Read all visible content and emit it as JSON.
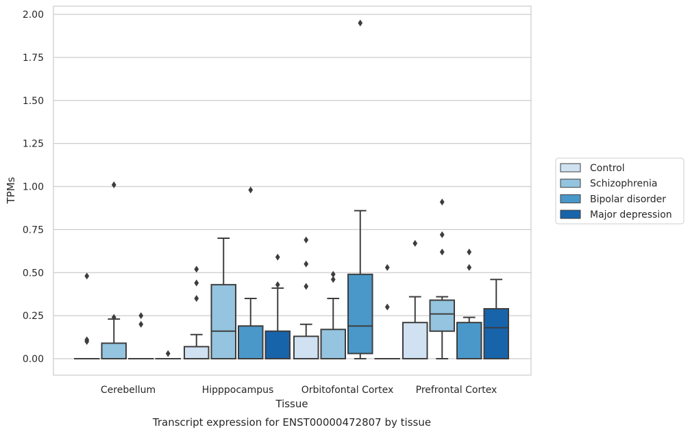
{
  "chart_data": {
    "type": "boxplot",
    "caption": "Transcript expression for ENST00000472807 by tissue",
    "xlabel": "Tissue",
    "ylabel": "TPMs",
    "ylim": [
      -0.1,
      2.05
    ],
    "yticks": [
      0.0,
      0.25,
      0.5,
      0.75,
      1.0,
      1.25,
      1.5,
      1.75,
      2.0
    ],
    "ytick_labels": [
      "0.00",
      "0.25",
      "0.50",
      "0.75",
      "1.00",
      "1.25",
      "1.50",
      "1.75",
      "2.00"
    ],
    "grid": "horizontal",
    "legend_position": "right",
    "categories": [
      "Cerebellum",
      "Hipppocampus",
      "Orbitofontal Cortex",
      "Prefrontal Cortex"
    ],
    "series": [
      {
        "name": "Control",
        "color": "#d0e1f2",
        "boxes": [
          {
            "q1": 0.0,
            "median": 0.0,
            "q3": 0.0,
            "whisker_low": 0.0,
            "whisker_high": 0.0,
            "outliers": [
              0.48,
              0.11,
              0.1
            ]
          },
          {
            "q1": 0.0,
            "median": 0.0,
            "q3": 0.07,
            "whisker_low": 0.0,
            "whisker_high": 0.14,
            "outliers": [
              0.52,
              0.44,
              0.35
            ]
          },
          {
            "q1": 0.0,
            "median": 0.0,
            "q3": 0.13,
            "whisker_low": 0.0,
            "whisker_high": 0.2,
            "outliers": [
              0.69,
              0.55,
              0.42
            ]
          },
          {
            "q1": 0.0,
            "median": 0.0,
            "q3": 0.21,
            "whisker_low": 0.0,
            "whisker_high": 0.36,
            "outliers": [
              0.67
            ]
          }
        ]
      },
      {
        "name": "Schizophrenia",
        "color": "#94c4df",
        "boxes": [
          {
            "q1": 0.0,
            "median": 0.0,
            "q3": 0.09,
            "whisker_low": 0.0,
            "whisker_high": 0.23,
            "outliers": [
              1.01,
              0.24
            ]
          },
          {
            "q1": 0.0,
            "median": 0.16,
            "q3": 0.43,
            "whisker_low": 0.0,
            "whisker_high": 0.7,
            "outliers": []
          },
          {
            "q1": 0.0,
            "median": 0.0,
            "q3": 0.17,
            "whisker_low": 0.0,
            "whisker_high": 0.35,
            "outliers": [
              0.49,
              0.46
            ]
          },
          {
            "q1": 0.16,
            "median": 0.26,
            "q3": 0.34,
            "whisker_low": 0.0,
            "whisker_high": 0.36,
            "outliers": [
              0.91,
              0.72,
              0.62
            ]
          }
        ]
      },
      {
        "name": "Bipolar disorder",
        "color": "#4a98c9",
        "boxes": [
          {
            "q1": 0.0,
            "median": 0.0,
            "q3": 0.0,
            "whisker_low": 0.0,
            "whisker_high": 0.0,
            "outliers": [
              0.25,
              0.2
            ]
          },
          {
            "q1": 0.0,
            "median": 0.0,
            "q3": 0.19,
            "whisker_low": 0.0,
            "whisker_high": 0.35,
            "outliers": [
              0.98
            ]
          },
          {
            "q1": 0.03,
            "median": 0.19,
            "q3": 0.49,
            "whisker_low": 0.0,
            "whisker_high": 0.86,
            "outliers": [
              1.95
            ]
          },
          {
            "q1": 0.0,
            "median": 0.0,
            "q3": 0.21,
            "whisker_low": 0.0,
            "whisker_high": 0.24,
            "outliers": [
              0.62,
              0.53
            ]
          }
        ]
      },
      {
        "name": "Major depression",
        "color": "#1764ab",
        "boxes": [
          {
            "q1": 0.0,
            "median": 0.0,
            "q3": 0.0,
            "whisker_low": 0.0,
            "whisker_high": 0.0,
            "outliers": [
              0.03
            ]
          },
          {
            "q1": 0.0,
            "median": 0.0,
            "q3": 0.16,
            "whisker_low": 0.0,
            "whisker_high": 0.41,
            "outliers": [
              0.59,
              0.43
            ]
          },
          {
            "q1": 0.0,
            "median": 0.0,
            "q3": 0.0,
            "whisker_low": 0.0,
            "whisker_high": 0.0,
            "outliers": [
              0.53,
              0.3
            ]
          },
          {
            "q1": 0.0,
            "median": 0.18,
            "q3": 0.29,
            "whisker_low": 0.0,
            "whisker_high": 0.46,
            "outliers": []
          }
        ]
      }
    ]
  }
}
